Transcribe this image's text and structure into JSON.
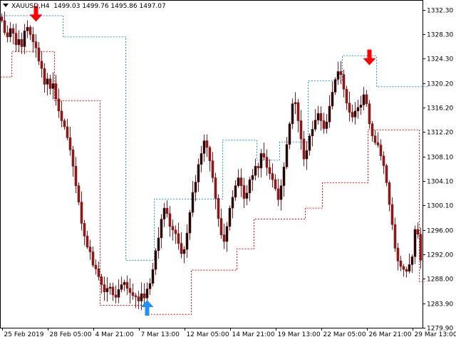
{
  "header": {
    "symbol": "XAUUSD,H4",
    "open": "1499.03",
    "high": "1499.76",
    "low": "1495.86",
    "close": "1497.07"
  },
  "colors": {
    "background": "#ffffff",
    "axis": "#000000",
    "candle": "#8b1a1a",
    "upper_band": "#1e90ff",
    "lower_band": "#ff0000",
    "sell_arrow": "#ff0000",
    "buy_arrow": "#1e90ff"
  },
  "chart_data": {
    "type": "candlestick",
    "title": "XAUUSD,H4",
    "y_ticks": [
      "1332.30",
      "1328.30",
      "1324.30",
      "1320.20",
      "1316.20",
      "1312.20",
      "1308.10",
      "1304.10",
      "1300.10",
      "1296.00",
      "1292.00",
      "1288.00",
      "1283.90",
      "1279.90"
    ],
    "ylim": [
      1279.9,
      1333.3
    ],
    "x_ticks": [
      "25 Feb 2019",
      "28 Feb 05:00",
      "4 Mar 21:00",
      "7 Mar 13:00",
      "12 Mar 05:00",
      "14 Mar 21:00",
      "19 Mar 13:00",
      "22 Mar 05:00",
      "26 Mar 21:00",
      "29 Mar 13:00"
    ],
    "x_tick_bar_index": [
      0,
      16,
      32,
      48,
      64,
      80,
      96,
      112,
      128,
      144
    ],
    "bar_count": 148,
    "closes": [
      1330.5,
      1328.5,
      1327.8,
      1329.2,
      1328.4,
      1326.5,
      1327.4,
      1326.2,
      1328.8,
      1329.4,
      1328.2,
      1327.0,
      1326.0,
      1323.8,
      1322.6,
      1320.0,
      1320.9,
      1319.3,
      1320.1,
      1317.6,
      1315.6,
      1314.0,
      1313.0,
      1311.2,
      1309.2,
      1306.5,
      1303.3,
      1300.6,
      1297.1,
      1295.0,
      1293.2,
      1292.4,
      1290.2,
      1289.6,
      1288.3,
      1287.0,
      1285.8,
      1286.4,
      1286.6,
      1285.3,
      1284.9,
      1286.2,
      1287.0,
      1287.4,
      1286.4,
      1285.7,
      1285.2,
      1285.0,
      1284.3,
      1285.5,
      1284.8,
      1286.3,
      1287.2,
      1289.5,
      1292.6,
      1294.7,
      1297.8,
      1299.6,
      1298.7,
      1296.6,
      1296.0,
      1295.4,
      1293.8,
      1292.1,
      1292.8,
      1295.5,
      1298.9,
      1302.2,
      1303.9,
      1306.8,
      1308.6,
      1310.7,
      1309.6,
      1307.4,
      1304.6,
      1301.2,
      1297.9,
      1295.2,
      1294.1,
      1296.6,
      1299.6,
      1301.4,
      1303.3,
      1304.6,
      1303.3,
      1301.2,
      1302.1,
      1304.3,
      1305.0,
      1306.5,
      1306.2,
      1308.6,
      1308.0,
      1306.3,
      1305.3,
      1304.3,
      1302.8,
      1301.0,
      1303.3,
      1306.4,
      1310.1,
      1313.5,
      1316.8,
      1317.0,
      1314.0,
      1311.0,
      1307.7,
      1309.1,
      1311.5,
      1312.6,
      1314.1,
      1315.2,
      1314.0,
      1312.7,
      1313.8,
      1316.4,
      1318.7,
      1320.8,
      1322.1,
      1321.6,
      1319.2,
      1316.9,
      1315.4,
      1314.6,
      1315.6,
      1316.2,
      1316.6,
      1318.3,
      1316.8,
      1313.5,
      1311.5,
      1310.4,
      1310.0,
      1308.2,
      1306.6,
      1303.8,
      1300.2,
      1296.9,
      1293.0,
      1290.9,
      1290.0,
      1289.5,
      1289.2,
      1290.3,
      1291.6,
      1296.1,
      1295.3,
      1291.0
    ],
    "upper_band": [
      1331.3,
      1331.3,
      1331.3,
      1331.3,
      1331.3,
      1331.3,
      1331.3,
      1331.3,
      1331.3,
      1331.3,
      1331.3,
      1331.3,
      1331.3,
      1331.3,
      1331.3,
      1331.3,
      1331.3,
      1331.3,
      1331.3,
      1331.3,
      1331.3,
      1331.3,
      1327.8,
      1327.8,
      1327.8,
      1327.8,
      1327.8,
      1327.8,
      1327.8,
      1327.8,
      1327.8,
      1327.8,
      1327.8,
      1327.8,
      1327.8,
      1327.8,
      1327.8,
      1327.8,
      1327.8,
      1327.8,
      1327.8,
      1327.8,
      1327.8,
      1327.8,
      1291.0,
      1291.0,
      1291.0,
      1291.0,
      1291.0,
      1291.0,
      1291.0,
      1291.0,
      1291.0,
      1291.0,
      1301.1,
      1301.1,
      1301.1,
      1301.1,
      1301.1,
      1301.1,
      1301.1,
      1301.1,
      1301.1,
      1301.1,
      1301.1,
      1301.1,
      1301.1,
      1301.1,
      1301.1,
      1301.1,
      1301.1,
      1301.1,
      1301.1,
      1301.1,
      1301.1,
      1301.1,
      1301.1,
      1301.1,
      1310.8,
      1310.8,
      1310.8,
      1310.8,
      1310.8,
      1310.8,
      1310.8,
      1310.8,
      1310.8,
      1310.8,
      1310.8,
      1310.8,
      1307.5,
      1307.5,
      1307.5,
      1307.5,
      1307.5,
      1307.5,
      1307.5,
      1307.5,
      1310.5,
      1310.5,
      1310.5,
      1310.5,
      1310.5,
      1310.5,
      1310.5,
      1310.5,
      1310.5,
      1310.5,
      1320.6,
      1320.6,
      1320.6,
      1320.6,
      1320.6,
      1320.6,
      1320.6,
      1320.6,
      1320.6,
      1320.6,
      1320.6,
      1320.6,
      1324.7,
      1324.7,
      1324.7,
      1324.7,
      1324.7,
      1324.7,
      1324.7,
      1324.7,
      1324.7,
      1324.7,
      1324.7,
      1324.7,
      1319.6,
      1319.6,
      1319.6,
      1319.6,
      1319.6,
      1319.6,
      1319.6,
      1319.6,
      1319.6,
      1319.6,
      1319.6,
      1319.6,
      1319.6,
      1319.6,
      1319.6,
      1319.6,
      1319.6,
      1319.6
    ],
    "lower_band": [
      1321.2,
      1321.2,
      1321.2,
      1321.2,
      1325.4,
      1325.4,
      1325.4,
      1325.4,
      1325.4,
      1325.4,
      1325.4,
      1325.4,
      1325.4,
      1325.4,
      1325.4,
      1325.4,
      1325.4,
      1325.4,
      1325.4,
      1317.3,
      1317.3,
      1317.3,
      1317.3,
      1317.3,
      1317.3,
      1317.3,
      1317.3,
      1317.3,
      1317.3,
      1317.3,
      1317.3,
      1317.3,
      1317.3,
      1317.3,
      1317.3,
      1283.6,
      1283.6,
      1283.6,
      1283.6,
      1283.6,
      1283.6,
      1283.6,
      1283.6,
      1283.6,
      1283.6,
      1283.6,
      1283.6,
      1283.6,
      1283.6,
      1283.6,
      1283.6,
      1282.1,
      1282.1,
      1282.1,
      1282.1,
      1282.1,
      1282.1,
      1282.1,
      1282.1,
      1282.1,
      1282.1,
      1282.1,
      1282.1,
      1282.1,
      1282.1,
      1282.1,
      1282.1,
      1289.4,
      1289.4,
      1289.4,
      1289.4,
      1289.4,
      1289.4,
      1289.4,
      1289.4,
      1289.4,
      1289.4,
      1289.4,
      1289.4,
      1289.4,
      1289.4,
      1289.4,
      1289.4,
      1292.9,
      1292.9,
      1292.9,
      1292.9,
      1292.9,
      1292.9,
      1297.8,
      1297.8,
      1297.8,
      1297.8,
      1297.8,
      1297.8,
      1297.8,
      1297.8,
      1297.8,
      1297.8,
      1297.8,
      1297.8,
      1297.8,
      1297.8,
      1297.8,
      1297.8,
      1297.8,
      1297.8,
      1299.6,
      1299.6,
      1299.6,
      1299.6,
      1299.6,
      1299.6,
      1303.8,
      1303.8,
      1303.8,
      1303.8,
      1303.8,
      1303.8,
      1303.8,
      1303.8,
      1303.8,
      1303.8,
      1303.8,
      1303.8,
      1303.8,
      1303.8,
      1303.8,
      1303.8,
      1312.5,
      1312.5,
      1312.5,
      1312.5,
      1312.5,
      1312.5,
      1312.5,
      1312.5,
      1312.5,
      1312.5,
      1312.5,
      1312.5,
      1312.5,
      1312.5,
      1312.5,
      1312.5,
      1312.5,
      1312.5,
      1287.5,
      1287.5
    ],
    "signals": [
      {
        "type": "sell",
        "bar": 12,
        "price": 1331.5
      },
      {
        "type": "buy",
        "bar": 51,
        "price": 1283.3
      },
      {
        "type": "sell",
        "bar": 129,
        "price": 1324.3
      }
    ],
    "grid": false
  }
}
